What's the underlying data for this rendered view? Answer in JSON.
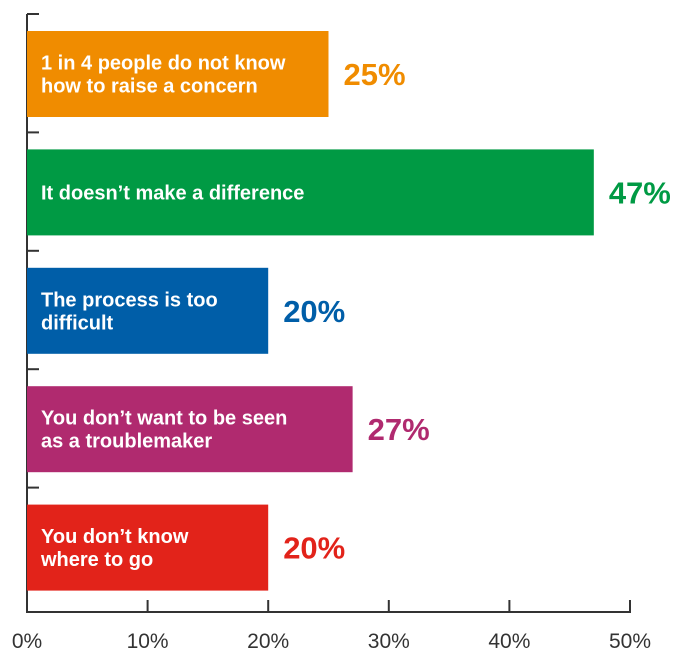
{
  "chart_data": {
    "type": "bar",
    "orientation": "horizontal",
    "title": "",
    "xlabel": "",
    "ylabel": "",
    "xlim": [
      0,
      50
    ],
    "x_ticks": [
      "0%",
      "10%",
      "20%",
      "30%",
      "40%",
      "50%"
    ],
    "grid": false,
    "legend": "none",
    "bars": [
      {
        "category": [
          "1 in 4 people do not know",
          "how to raise a concern"
        ],
        "value": 25,
        "value_label": "25%",
        "color": "#f08c00"
      },
      {
        "category": [
          "It doesn’t make a difference"
        ],
        "value": 47,
        "value_label": "47%",
        "color": "#009a44"
      },
      {
        "category": [
          "The process is too",
          "difficult"
        ],
        "value": 20,
        "value_label": "20%",
        "color": "#005ea8"
      },
      {
        "category": [
          "You don’t want to be seen",
          "as a troublemaker"
        ],
        "value": 27,
        "value_label": "27%",
        "color": "#b02a6f"
      },
      {
        "category": [
          "You don’t know",
          "where to go"
        ],
        "value": 20,
        "value_label": "20%",
        "color": "#e2231a"
      }
    ]
  }
}
